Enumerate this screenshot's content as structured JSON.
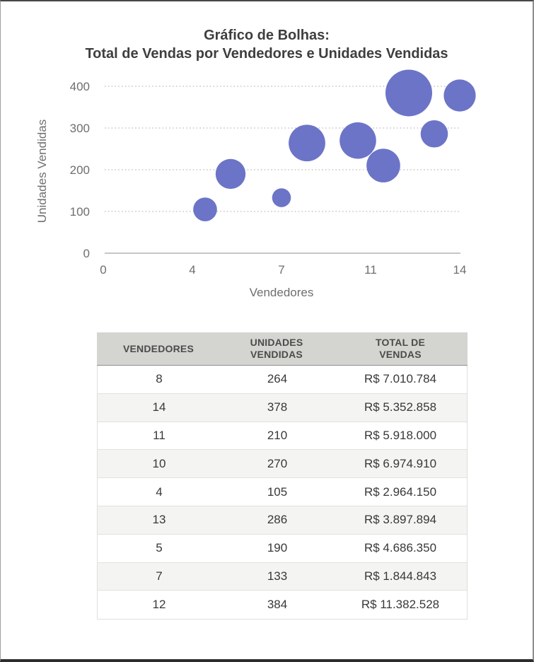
{
  "chart": {
    "title_line1": "Gráfico de Bolhas:",
    "title_line2": "Total de Vendas por Vendedores e Unidades Vendidas"
  },
  "chart_data": {
    "type": "scatter",
    "subtype": "bubble",
    "title": "Gráfico de Bolhas: Total de Vendas por Vendedores e Unidades Vendidas",
    "xlabel": "Vendedores",
    "ylabel": "Unidades Vendidas",
    "xlim": [
      0,
      14
    ],
    "ylim": [
      0,
      400
    ],
    "x_ticks": [
      {
        "value": 0,
        "label": "0"
      },
      {
        "value": 3.5,
        "label": "4"
      },
      {
        "value": 7,
        "label": "7"
      },
      {
        "value": 10.5,
        "label": "11"
      },
      {
        "value": 14,
        "label": "14"
      }
    ],
    "y_ticks": [
      0,
      100,
      200,
      300,
      400
    ],
    "grid": "horizontal-dotted",
    "legend": "none",
    "bubble_color": "#6c74c8",
    "size_field": "Total de Vendas (R$)",
    "size_scale": "area-proportional",
    "max_radius_px": 33,
    "points": [
      {
        "x": 8,
        "y": 264,
        "size": 7010784
      },
      {
        "x": 14,
        "y": 378,
        "size": 5352858
      },
      {
        "x": 11,
        "y": 210,
        "size": 5918000
      },
      {
        "x": 10,
        "y": 270,
        "size": 6974910
      },
      {
        "x": 4,
        "y": 105,
        "size": 2964150
      },
      {
        "x": 13,
        "y": 286,
        "size": 3897894
      },
      {
        "x": 5,
        "y": 190,
        "size": 4686350
      },
      {
        "x": 7,
        "y": 133,
        "size": 1844843
      },
      {
        "x": 12,
        "y": 384,
        "size": 11382528
      }
    ]
  },
  "table": {
    "headers": [
      "VENDEDORES",
      "UNIDADES\nVENDIDAS",
      "TOTAL DE\nVENDAS"
    ],
    "rows": [
      [
        "8",
        "264",
        "R$ 7.010.784"
      ],
      [
        "14",
        "378",
        "R$ 5.352.858"
      ],
      [
        "11",
        "210",
        "R$ 5.918.000"
      ],
      [
        "10",
        "270",
        "R$ 6.974.910"
      ],
      [
        "4",
        "105",
        "R$ 2.964.150"
      ],
      [
        "13",
        "286",
        "R$ 3.897.894"
      ],
      [
        "5",
        "190",
        "R$ 4.686.350"
      ],
      [
        "7",
        "133",
        "R$ 1.844.843"
      ],
      [
        "12",
        "384",
        "R$ 11.382.528"
      ]
    ]
  },
  "colors": {
    "bubble": "#6c74c8",
    "title_text": "#3e3e3e",
    "axis_text": "#6e6e6e",
    "gridline": "#c7c7c7",
    "axis_line": "#b4b4b4",
    "table_header_bg": "#d4d4d0",
    "table_header_text": "#4b4b4b",
    "table_zebra_bg": "#f4f4f2",
    "table_cell_text": "#383838"
  }
}
